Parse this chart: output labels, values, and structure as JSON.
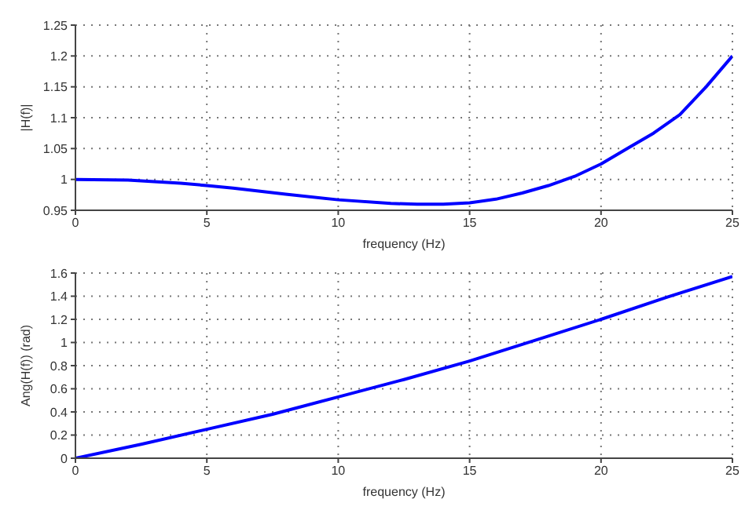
{
  "chart_data": [
    {
      "type": "line",
      "xlabel": "frequency (Hz)",
      "ylabel": "|H(f)|",
      "x": [
        0,
        2,
        4,
        5,
        6,
        8,
        10,
        12,
        13,
        14,
        15,
        16,
        17,
        18,
        19,
        20,
        21,
        22,
        23,
        24,
        25
      ],
      "series": [
        {
          "color": "#0000ff",
          "values": [
            1.0,
            0.999,
            0.994,
            0.99,
            0.986,
            0.976,
            0.967,
            0.961,
            0.96,
            0.96,
            0.962,
            0.968,
            0.978,
            0.99,
            1.005,
            1.025,
            1.05,
            1.075,
            1.105,
            1.15,
            1.2
          ]
        }
      ],
      "xlim": [
        0,
        25
      ],
      "xticks": [
        0,
        5,
        10,
        15,
        20,
        25
      ],
      "ylim": [
        0.95,
        1.25
      ],
      "yticks": [
        0.95,
        1,
        1.05,
        1.1,
        1.15,
        1.2,
        1.25
      ],
      "grid": true,
      "line_style": "solid",
      "marker": "none"
    },
    {
      "type": "line",
      "xlabel": "frequency (Hz)",
      "ylabel": "Ang(H(f)) (rad)",
      "x": [
        0,
        2.5,
        5,
        7.5,
        10,
        12.5,
        15,
        17.5,
        20,
        22.5,
        25
      ],
      "series": [
        {
          "color": "#0000ff",
          "values": [
            0,
            0.12,
            0.25,
            0.38,
            0.53,
            0.68,
            0.84,
            1.02,
            1.2,
            1.39,
            1.57
          ]
        }
      ],
      "xlim": [
        0,
        25
      ],
      "xticks": [
        0,
        5,
        10,
        15,
        20,
        25
      ],
      "ylim": [
        0,
        1.6
      ],
      "yticks": [
        0,
        0.2,
        0.4,
        0.6,
        0.8,
        1,
        1.2,
        1.4,
        1.6
      ],
      "grid": true,
      "line_style": "solid",
      "marker": "none"
    }
  ]
}
